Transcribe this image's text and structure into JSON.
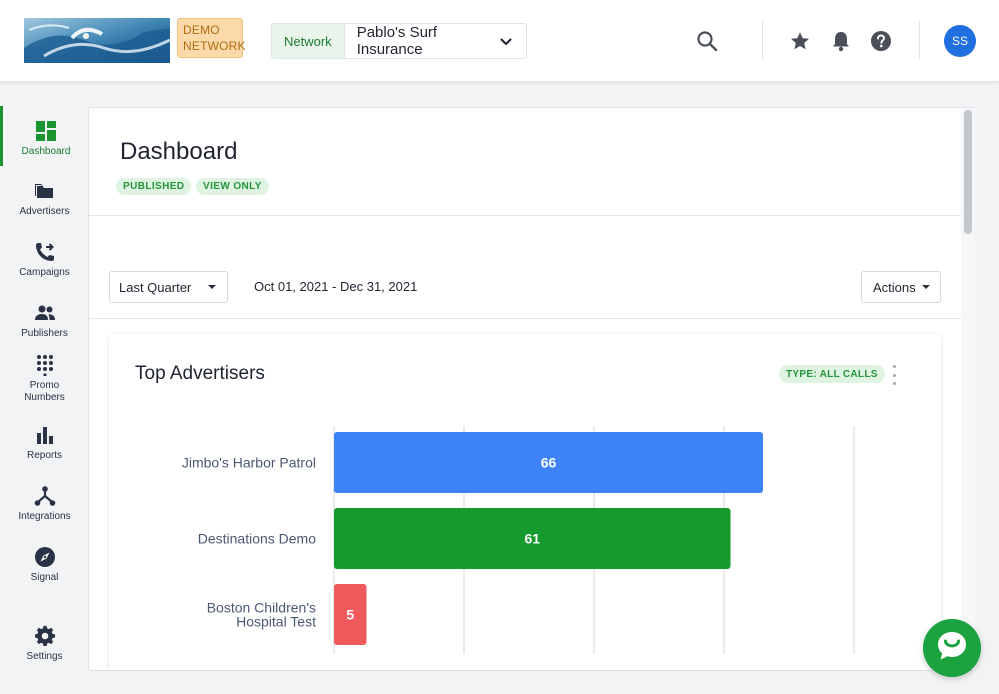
{
  "header": {
    "demo_badge_line1": "DEMO",
    "demo_badge_line2": "NETWORK",
    "network_label": "Network",
    "network_value": "Pablo's Surf Insurance",
    "avatar_initials": "SS",
    "icons": [
      "search-icon",
      "star-icon",
      "bell-icon",
      "help-icon"
    ]
  },
  "sidebar": {
    "items": [
      {
        "label": "Dashboard",
        "icon": "dashboard-icon",
        "active": true
      },
      {
        "label": "Advertisers",
        "icon": "folder-icon"
      },
      {
        "label": "Campaigns",
        "icon": "phone-forward-icon"
      },
      {
        "label": "Publishers",
        "icon": "people-icon"
      },
      {
        "label": "Promo Numbers",
        "label_line1": "Promo",
        "label_line2": "Numbers",
        "icon": "dialpad-icon"
      },
      {
        "label": "Reports",
        "icon": "bar-chart-icon"
      },
      {
        "label": "Integrations",
        "icon": "integrations-icon"
      },
      {
        "label": "Signal",
        "icon": "compass-icon"
      },
      {
        "label": "Settings",
        "icon": "gear-icon"
      }
    ]
  },
  "main": {
    "title": "Dashboard",
    "pills": [
      "PUBLISHED",
      "VIEW ONLY"
    ],
    "period_select": "Last Quarter",
    "date_range": "Oct 01, 2021 - Dec 31, 2021",
    "actions_label": "Actions"
  },
  "widget": {
    "title": "Top Advertisers",
    "type_pill": "TYPE: ALL CALLS"
  },
  "colors": {
    "accent_green": "#1a9331",
    "bar_blue": "#3d82f6",
    "bar_green": "#169a2e",
    "bar_red": "#f05a5d",
    "avatar_blue": "#1f6fe0"
  },
  "chart_data": {
    "type": "bar",
    "orientation": "horizontal",
    "categories": [
      "Jimbo's Harbor Patrol",
      "Destinations Demo",
      "Boston Children's Hospital Test"
    ],
    "category_lines": [
      [
        "Jimbo's Harbor Patrol"
      ],
      [
        "Destinations Demo"
      ],
      [
        "Boston Children's",
        "Hospital Test"
      ]
    ],
    "values": [
      66,
      61,
      5
    ],
    "colors": [
      "#3d82f6",
      "#169a2e",
      "#f05a5d"
    ],
    "xlim": [
      0,
      80
    ],
    "grid": true,
    "title": "Top Advertisers"
  }
}
